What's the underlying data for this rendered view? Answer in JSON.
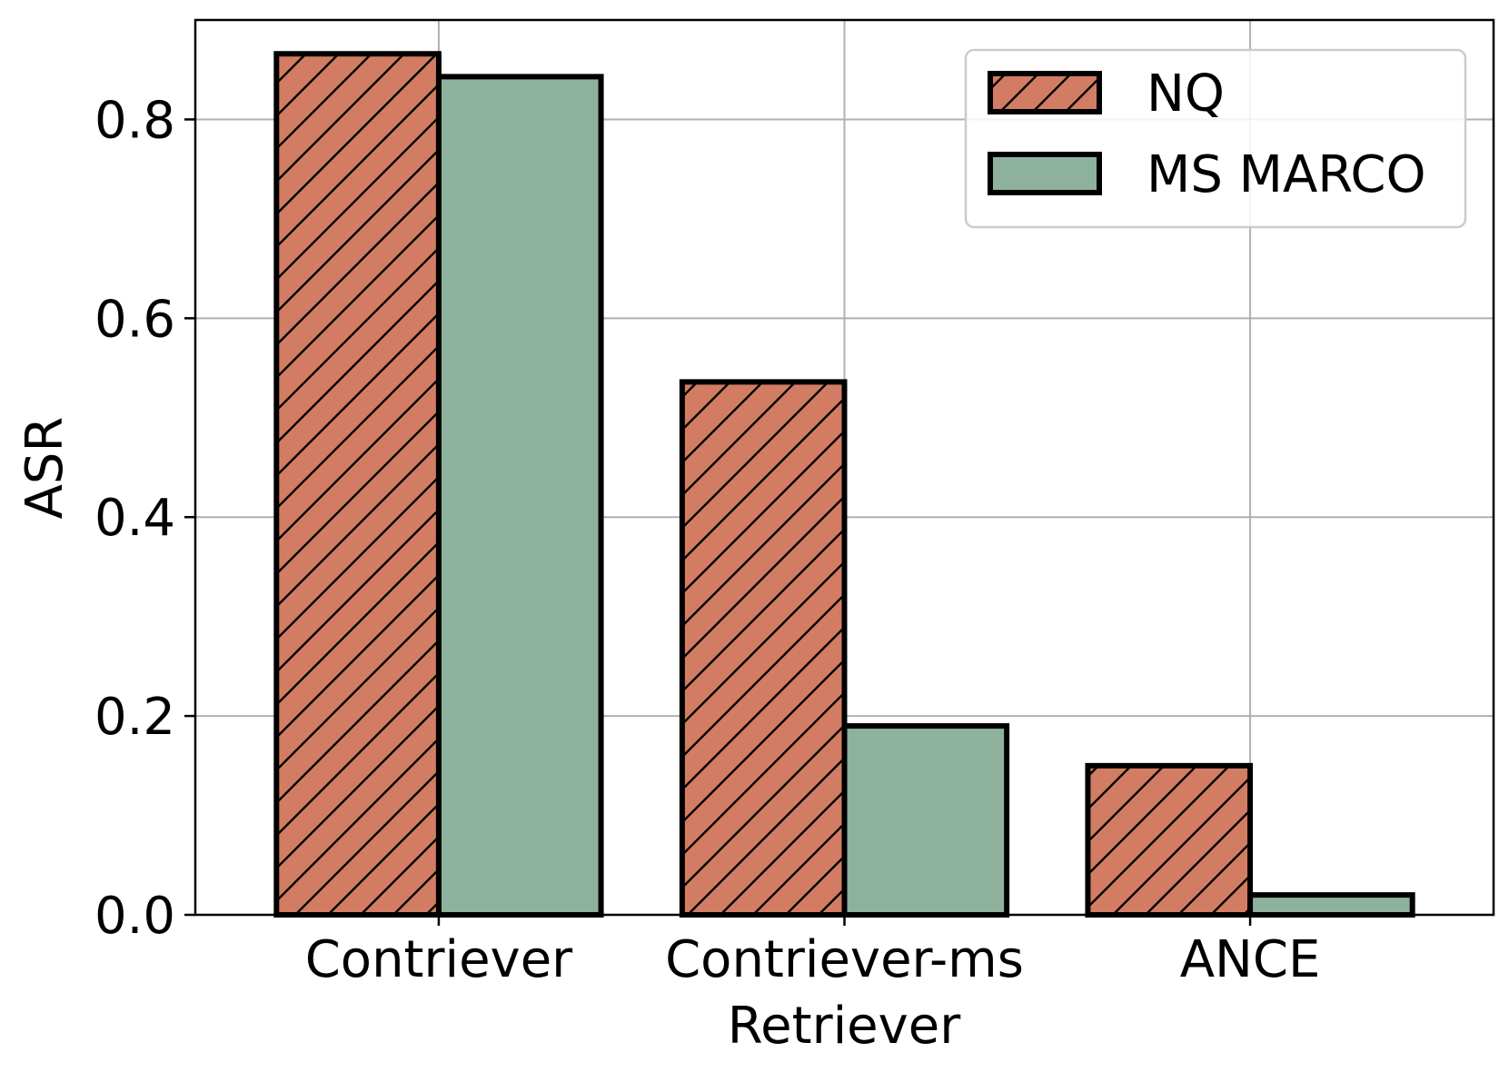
{
  "chart_data": {
    "type": "bar",
    "title": "",
    "xlabel": "Retriever",
    "ylabel": "ASR",
    "categories": [
      "Contriever",
      "Contriever-ms",
      "ANCE"
    ],
    "series": [
      {
        "name": "NQ",
        "values": [
          0.866,
          0.536,
          0.15
        ],
        "color": "#d27d63",
        "hatch": "diagonal"
      },
      {
        "name": "MS MARCO",
        "values": [
          0.843,
          0.19,
          0.02
        ],
        "color": "#8db19c",
        "hatch": "none"
      }
    ],
    "ylim": [
      0,
      0.9
    ],
    "yticks": [
      0.0,
      0.2,
      0.4,
      0.6,
      0.8
    ],
    "ytick_labels": [
      "0.0",
      "0.2",
      "0.4",
      "0.6",
      "0.8"
    ],
    "grid": true,
    "legend": {
      "placement": "top-right",
      "entries": [
        "NQ",
        "MS MARCO"
      ]
    },
    "colors": {
      "edge": "#000000",
      "grid": "#b0b0b0",
      "legend_border": "#cccccc"
    }
  }
}
